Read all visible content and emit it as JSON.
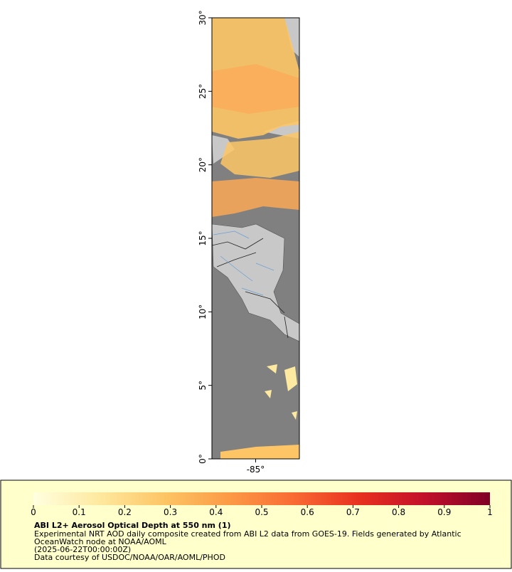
{
  "map": {
    "lat_range": [
      0,
      30
    ],
    "lon_range": [
      -88,
      -82
    ],
    "lat_ticks": [
      {
        "value": 0,
        "label": "0°"
      },
      {
        "value": 5,
        "label": "5°"
      },
      {
        "value": 10,
        "label": "10°"
      },
      {
        "value": 15,
        "label": "15°"
      },
      {
        "value": 20,
        "label": "20°"
      },
      {
        "value": 25,
        "label": "25°"
      },
      {
        "value": 30,
        "label": "30°"
      }
    ],
    "lon_ticks": [
      {
        "value": -85,
        "label": "-85°"
      }
    ]
  },
  "colorbar": {
    "range": [
      0,
      1
    ],
    "ticks": [
      0,
      0.1,
      0.2,
      0.3,
      0.4,
      0.5,
      0.6,
      0.7,
      0.8,
      0.9,
      1
    ],
    "colors": [
      "#ffffe0",
      "#fee9a0",
      "#fdc565",
      "#fc9a46",
      "#f96a33",
      "#e8301f",
      "#c2102a",
      "#800026"
    ]
  },
  "legend": {
    "title": "ABI L2+ Aerosol Optical Depth at 550 nm (1)",
    "lines": [
      "Experimental NRT AOD daily composite created from ABI L2 data from GOES-19. Fields generated by Atlantic",
      "OceanWatch node at NOAA/AOML",
      "(2025-06-22T00:00:00Z)",
      "Data courtesy of USDOC/NOAA/OAR/AOML/PHOD"
    ]
  }
}
